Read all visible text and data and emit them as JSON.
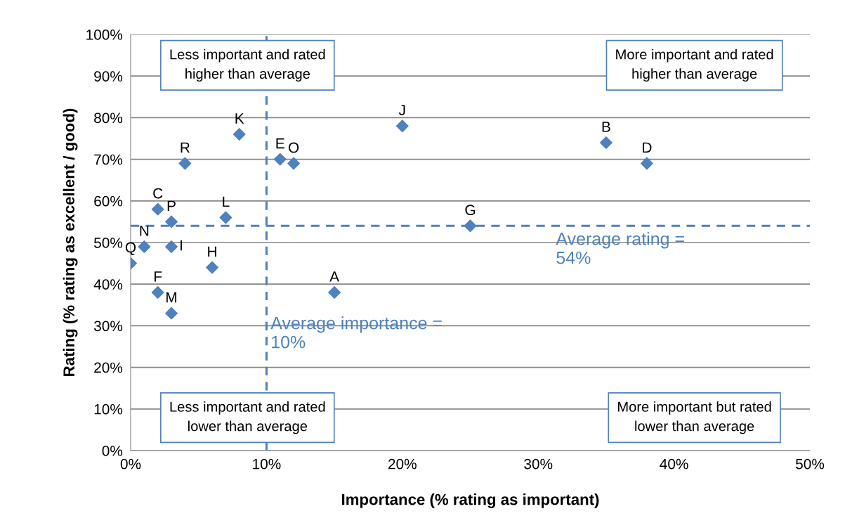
{
  "chart_data": {
    "type": "scatter",
    "xlabel": "Importance (% rating as important)",
    "ylabel": "Rating (% rating as excellent / good)",
    "x": [
      15,
      35,
      2,
      38,
      11,
      2,
      25,
      6,
      3,
      20,
      8,
      7,
      3,
      1,
      12,
      3,
      0,
      4
    ],
    "series": [
      {
        "color": "#4f81bd",
        "values": [
          38,
          74,
          58,
          69,
          70,
          38,
          54,
          44,
          49,
          78,
          76,
          56,
          33,
          49,
          69,
          55,
          45,
          69
        ]
      }
    ],
    "marker": "diamond",
    "grid": "y",
    "xlim": [
      0,
      50
    ],
    "ylim": [
      0,
      100
    ],
    "xticks": [
      {
        "value": 0,
        "label": "0%"
      },
      {
        "value": 10,
        "label": "10%"
      },
      {
        "value": 20,
        "label": "20%"
      },
      {
        "value": 30,
        "label": "30%"
      },
      {
        "value": 40,
        "label": "40%"
      },
      {
        "value": 50,
        "label": "50%"
      }
    ],
    "yticks": [
      {
        "value": 0,
        "label": "0%"
      },
      {
        "value": 10,
        "label": "10%"
      },
      {
        "value": 20,
        "label": "20%"
      },
      {
        "value": 30,
        "label": "30%"
      },
      {
        "value": 40,
        "label": "40%"
      },
      {
        "value": 50,
        "label": "50%"
      },
      {
        "value": 60,
        "label": "60%"
      },
      {
        "value": 70,
        "label": "70%"
      },
      {
        "value": 80,
        "label": "80%"
      },
      {
        "value": 90,
        "label": "90%"
      },
      {
        "value": 100,
        "label": "100%"
      }
    ],
    "ref_lines": [
      {
        "axis": "x",
        "value": 10,
        "label": "Average importance =\n10%",
        "color": "#4f81bd",
        "line_style": "dashed"
      },
      {
        "axis": "y",
        "value": 54,
        "label": "Average rating =\n54%",
        "color": "#4f81bd",
        "line_style": "dashed"
      }
    ],
    "annotations": [
      {
        "text": "A",
        "x": 15,
        "y": 38
      },
      {
        "text": "B",
        "x": 35,
        "y": 74
      },
      {
        "text": "C",
        "x": 2,
        "y": 58
      },
      {
        "text": "D",
        "x": 38,
        "y": 69
      },
      {
        "text": "E",
        "x": 11,
        "y": 70
      },
      {
        "text": "F",
        "x": 2,
        "y": 38
      },
      {
        "text": "G",
        "x": 25,
        "y": 54
      },
      {
        "text": "H",
        "x": 6,
        "y": 44
      },
      {
        "text": "I",
        "x": 3,
        "y": 49
      },
      {
        "text": "J",
        "x": 20,
        "y": 78
      },
      {
        "text": "K",
        "x": 8,
        "y": 76
      },
      {
        "text": "L",
        "x": 7,
        "y": 56
      },
      {
        "text": "M",
        "x": 3,
        "y": 33
      },
      {
        "text": "N",
        "x": 1,
        "y": 49
      },
      {
        "text": "O",
        "x": 12,
        "y": 69
      },
      {
        "text": "P",
        "x": 3,
        "y": 55
      },
      {
        "text": "Q",
        "x": 0,
        "y": 45
      },
      {
        "text": "R",
        "x": 4,
        "y": 69
      },
      "Less important and rated\nhigher than average",
      "More important and rated\nhigher than average",
      "Less important and rated\nlower than average",
      "More important but rated\nlower than average"
    ]
  }
}
